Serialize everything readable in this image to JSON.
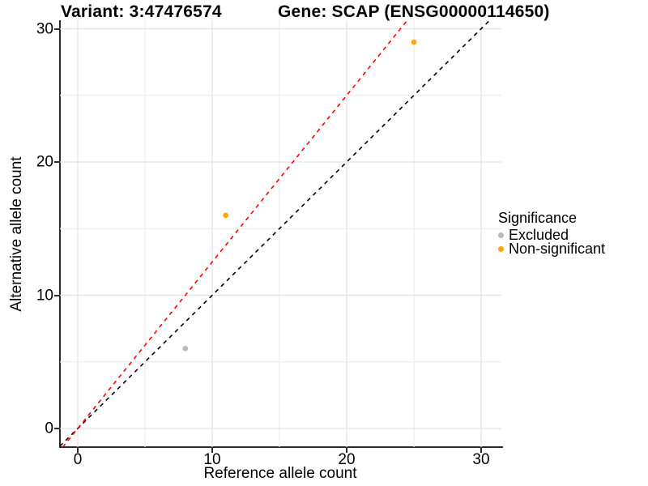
{
  "title": {
    "left": "Variant: 3:47476574",
    "right": "Gene: SCAP (ENSG00000114650)"
  },
  "chart_data": {
    "type": "scatter",
    "xlabel": "Reference allele count",
    "ylabel": "Alternative allele count",
    "x_ticks": [
      "0",
      "10",
      "20",
      "30"
    ],
    "y_ticks": [
      "0",
      "10",
      "20",
      "30"
    ],
    "x_tick_values": [
      0,
      10,
      20,
      30
    ],
    "y_tick_values": [
      0,
      10,
      20,
      30
    ],
    "xlim": [
      -1.3,
      31.5
    ],
    "ylim": [
      -1.5,
      30.6
    ],
    "grid": "major and minor (every 5), light gray on white",
    "minor_tick_values": [
      5,
      15,
      25
    ],
    "series": [
      {
        "name": "Excluded",
        "color": "#B9B9B9",
        "points": [
          {
            "x": 8,
            "y": 6
          }
        ]
      },
      {
        "name": "Non-significant",
        "color": "#FFA500",
        "points": [
          {
            "x": 11,
            "y": 16
          },
          {
            "x": 25,
            "y": 29
          }
        ]
      }
    ],
    "lines": [
      {
        "name": "identity-line",
        "style": "dashed",
        "color": "#000000",
        "slope": 1.0,
        "intercept": 0
      },
      {
        "name": "allelic-ratio-line",
        "style": "dashed",
        "color": "#FF0000",
        "slope": 1.25,
        "intercept": 0
      }
    ],
    "legend": {
      "title": "Significance",
      "position": "right",
      "entries": [
        {
          "label": "Excluded",
          "color": "#B9B9B9"
        },
        {
          "label": "Non-significant",
          "color": "#FFA500"
        }
      ]
    }
  },
  "colors": {
    "background": "#FFFFFF",
    "axis": "#2B2B2B",
    "grid_major": "#E4E4E4",
    "grid_minor": "#EDEDED",
    "excluded_point": "#B9B9B9",
    "non_significant_point": "#FFA500",
    "identity_line": "#000000",
    "ratio_line": "#FF0000"
  }
}
